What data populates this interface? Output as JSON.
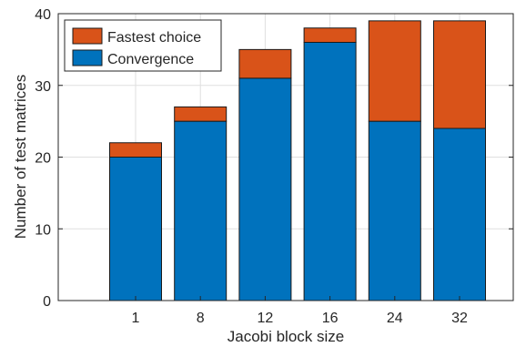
{
  "chart_data": {
    "type": "bar",
    "stacked": true,
    "categories": [
      "1",
      "8",
      "12",
      "16",
      "24",
      "32"
    ],
    "series": [
      {
        "name": "Convergence",
        "color": "#0072BD",
        "values": [
          20,
          25,
          31,
          36,
          25,
          24
        ]
      },
      {
        "name": "Fastest choice",
        "color": "#D95319",
        "values": [
          2,
          2,
          4,
          2,
          14,
          15
        ]
      }
    ],
    "xlabel": "Jacobi block size",
    "ylabel": "Number of test matrices",
    "ylim": [
      0,
      40
    ],
    "yticks": [
      0,
      10,
      20,
      30,
      40
    ],
    "grid": true,
    "legend_position": "top-left",
    "legend_order": [
      "Fastest choice",
      "Convergence"
    ]
  }
}
